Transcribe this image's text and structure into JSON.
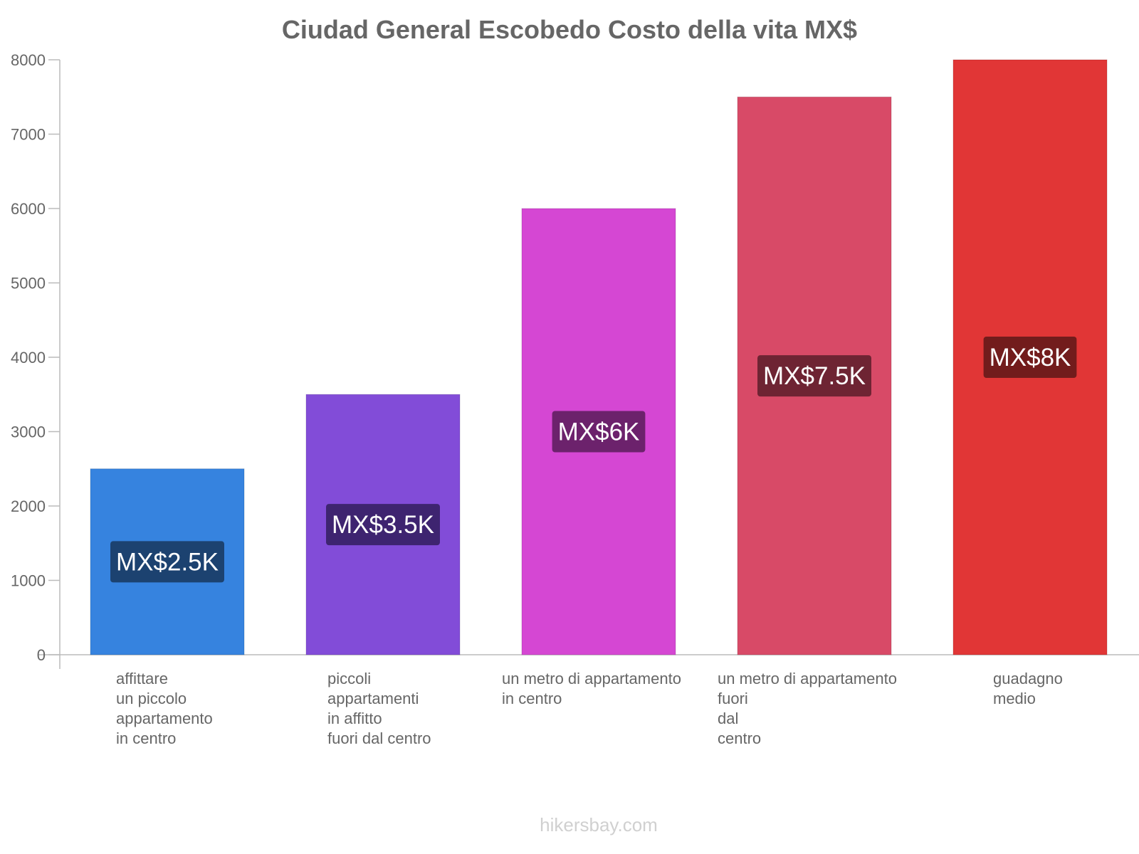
{
  "chart_data": {
    "type": "bar",
    "title": "Ciudad General Escobedo Costo della vita MX$",
    "categories": [
      [
        "affittare",
        "un piccolo",
        "appartamento",
        "in centro"
      ],
      [
        "piccoli",
        "appartamenti",
        "in affitto",
        "fuori dal centro"
      ],
      [
        "un metro di appartamento",
        "in centro"
      ],
      [
        "un metro di appartamento",
        "fuori",
        "dal",
        "centro"
      ],
      [
        "guadagno",
        "medio"
      ]
    ],
    "values": [
      2500,
      3500,
      6000,
      7500,
      8000
    ],
    "value_labels": [
      "MX$2.5K",
      "MX$3.5K",
      "MX$6K",
      "MX$7.5K",
      "MX$8K"
    ],
    "colors": [
      "#3683DF",
      "#824CD8",
      "#D547D3",
      "#D84A67",
      "#E13636"
    ],
    "label_colors": [
      "#1C4270",
      "#3E2470",
      "#6C226C",
      "#6E2433",
      "#721C1C"
    ],
    "yticks": [
      0,
      1000,
      2000,
      3000,
      4000,
      5000,
      6000,
      7000,
      8000
    ],
    "ylim": [
      0,
      8000
    ],
    "xlabel": "",
    "ylabel": "",
    "grid": false
  },
  "footer": "hikersbay.com"
}
